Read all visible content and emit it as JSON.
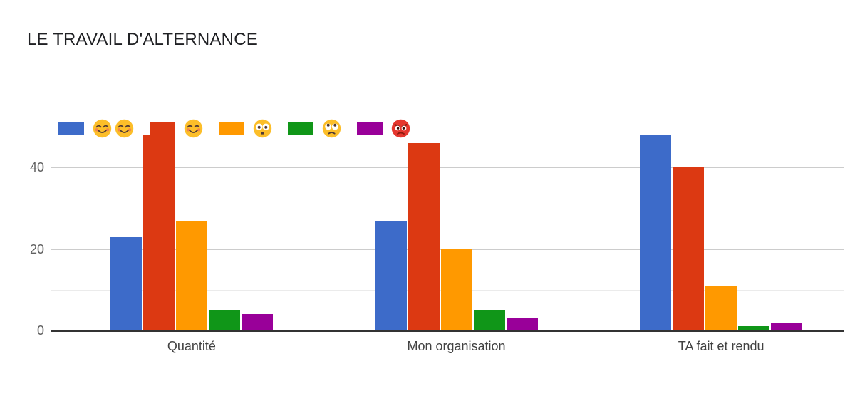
{
  "title": "LE TRAVAIL D'ALTERNANCE",
  "legend": {
    "items": [
      {
        "id": "very-satisfied",
        "swatch_color": "#3D6BC9",
        "emojis": "😊😊",
        "icons": [
          "smiling-face-icon",
          "smiling-face-icon"
        ]
      },
      {
        "id": "satisfied",
        "swatch_color": "#DC3912",
        "emojis": "😊",
        "icons": [
          "smiling-face-icon"
        ]
      },
      {
        "id": "surprised",
        "swatch_color": "#FF9900",
        "emojis": "😳",
        "icons": [
          "flushed-face-icon"
        ]
      },
      {
        "id": "unamused",
        "swatch_color": "#109618",
        "emojis": "🙄",
        "icons": [
          "eye-roll-face-icon"
        ]
      },
      {
        "id": "angry",
        "swatch_color": "#990099",
        "emojis": "😡",
        "icons": [
          "angry-face-icon"
        ]
      }
    ]
  },
  "chart_data": {
    "type": "bar",
    "title": "LE TRAVAIL D'ALTERNANCE",
    "categories": [
      "Quantité",
      "Mon organisation",
      "TA fait et rendu"
    ],
    "series": [
      {
        "id": "very-satisfied",
        "name": "😊😊",
        "color": "#3D6BC9",
        "values": [
          23,
          27,
          48
        ]
      },
      {
        "id": "satisfied",
        "name": "😊",
        "color": "#DC3912",
        "values": [
          48,
          46,
          40
        ]
      },
      {
        "id": "surprised",
        "name": "😳",
        "color": "#FF9900",
        "values": [
          27,
          20,
          11
        ]
      },
      {
        "id": "unamused",
        "name": "🙄",
        "color": "#109618",
        "values": [
          5,
          5,
          1
        ]
      },
      {
        "id": "angry",
        "name": "😡",
        "color": "#990099",
        "values": [
          4,
          3,
          2
        ]
      }
    ],
    "xlabel": "",
    "ylabel": "",
    "yticks": [
      0,
      20,
      40
    ],
    "minor_gridlines": [
      10,
      30,
      50
    ],
    "ylim": [
      0,
      55
    ],
    "grid": true,
    "legend_position": "top-left-overlay"
  },
  "colors": {
    "background": "#ffffff",
    "title_text": "#202124",
    "tick_text": "#616161",
    "category_text": "#424242",
    "baseline": "#333333",
    "grid_major": "#cccccc",
    "grid_minor": "#ebebeb"
  }
}
